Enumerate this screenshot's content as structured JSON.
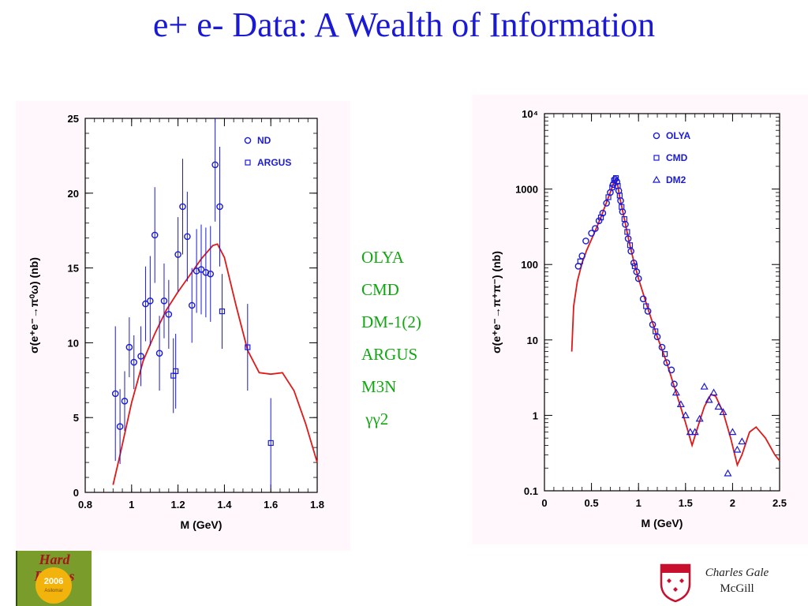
{
  "slide": {
    "title": "e+ e- Data: A Wealth of Information",
    "experiments": [
      "OLYA",
      "CMD",
      "DM-1(2)",
      "ARGUS",
      "M3N",
      " γγ2"
    ],
    "author": "Charles Gale",
    "institution": "McGill",
    "logo_text": "Hard Probes",
    "logo_year": "2006",
    "logo_subtext": "Asilomar",
    "colors": {
      "title": "#1a1ad6",
      "experiments": "#11a711",
      "data_points": "#1a1ad6",
      "theory_curve": "#e01818",
      "panel_background": "#fff7fc"
    }
  },
  "chart_data": [
    {
      "type": "scatter",
      "xlabel": "M (GeV)",
      "ylabel": "σ(e⁺e⁻→π⁰ω) (nb)",
      "xlim": [
        0.8,
        1.8
      ],
      "ylim": [
        0,
        25
      ],
      "xticks": [
        0.8,
        1,
        1.2,
        1.4,
        1.6,
        1.8
      ],
      "xtick_labels": [
        "0.8",
        "1",
        "1.2",
        "1.4",
        "1.6",
        "1.8"
      ],
      "yticks": [
        0,
        5,
        10,
        15,
        20,
        25
      ],
      "ytick_labels": [
        "0",
        "5",
        "10",
        "15",
        "20",
        "25"
      ],
      "legend": [
        "ND",
        "ARGUS"
      ],
      "legend_position": "top-right",
      "series": [
        {
          "name": "ND",
          "marker": "circle",
          "points": [
            {
              "x": 0.93,
              "y": 6.6,
              "err": 4.5
            },
            {
              "x": 0.95,
              "y": 4.4,
              "err": 2.5
            },
            {
              "x": 0.97,
              "y": 6.1,
              "err": 2.0
            },
            {
              "x": 0.99,
              "y": 9.7,
              "err": 2.0
            },
            {
              "x": 1.01,
              "y": 8.7,
              "err": 1.8
            },
            {
              "x": 1.04,
              "y": 9.1,
              "err": 2.0
            },
            {
              "x": 1.06,
              "y": 12.6,
              "err": 2.5
            },
            {
              "x": 1.08,
              "y": 12.8,
              "err": 3.0
            },
            {
              "x": 1.1,
              "y": 17.2,
              "err": 3.2
            },
            {
              "x": 1.12,
              "y": 9.3,
              "err": 2.5
            },
            {
              "x": 1.14,
              "y": 12.8,
              "err": 2.5
            },
            {
              "x": 1.16,
              "y": 11.9,
              "err": 2.3
            },
            {
              "x": 1.2,
              "y": 15.9,
              "err": 2.5
            },
            {
              "x": 1.22,
              "y": 19.1,
              "err": 3.2
            },
            {
              "x": 1.24,
              "y": 17.1,
              "err": 3.0
            },
            {
              "x": 1.26,
              "y": 12.5,
              "err": 2.5
            },
            {
              "x": 1.28,
              "y": 14.8,
              "err": 2.8
            },
            {
              "x": 1.3,
              "y": 14.9,
              "err": 3.0
            },
            {
              "x": 1.32,
              "y": 14.7,
              "err": 3.0
            },
            {
              "x": 1.34,
              "y": 14.6,
              "err": 3.2
            },
            {
              "x": 1.36,
              "y": 21.9,
              "err": 3.8
            },
            {
              "x": 1.38,
              "y": 19.1,
              "err": 4.0
            }
          ]
        },
        {
          "name": "ARGUS",
          "marker": "square",
          "points": [
            {
              "x": 1.18,
              "y": 7.8,
              "err": 2.5
            },
            {
              "x": 1.19,
              "y": 8.1,
              "err": 2.5
            },
            {
              "x": 1.39,
              "y": 12.1,
              "err": 2.5
            },
            {
              "x": 1.5,
              "y": 9.7,
              "err": 2.9
            },
            {
              "x": 1.6,
              "y": 3.3,
              "err": 3.0
            }
          ]
        }
      ],
      "curve": [
        [
          0.92,
          0.5
        ],
        [
          0.95,
          2.5
        ],
        [
          1.0,
          6.0
        ],
        [
          1.05,
          8.8
        ],
        [
          1.1,
          10.6
        ],
        [
          1.15,
          12.2
        ],
        [
          1.2,
          13.4
        ],
        [
          1.25,
          14.5
        ],
        [
          1.3,
          15.6
        ],
        [
          1.35,
          16.5
        ],
        [
          1.37,
          16.6
        ],
        [
          1.4,
          15.7
        ],
        [
          1.45,
          12.5
        ],
        [
          1.5,
          9.5
        ],
        [
          1.55,
          8.0
        ],
        [
          1.6,
          7.9
        ],
        [
          1.65,
          8.0
        ],
        [
          1.7,
          6.8
        ],
        [
          1.75,
          4.6
        ],
        [
          1.8,
          2.0
        ]
      ]
    },
    {
      "type": "scatter",
      "xlabel": "M (GeV)",
      "ylabel": "σ(e⁺e⁻→π⁺π⁻) (nb)",
      "yscale": "log",
      "xlim": [
        0,
        2.5
      ],
      "ylim": [
        0.1,
        10000
      ],
      "xticks": [
        0,
        0.5,
        1,
        1.5,
        2,
        2.5
      ],
      "xtick_labels": [
        "0",
        "0.5",
        "1",
        "1.5",
        "2",
        "2.5"
      ],
      "yticks": [
        0.1,
        1,
        10,
        100,
        1000,
        10000
      ],
      "ytick_labels": [
        "0.1",
        "1",
        "10",
        "100",
        "1000",
        "10⁴"
      ],
      "legend": [
        "OLYA",
        "CMD",
        "DM2"
      ],
      "legend_position": "top-right",
      "series": [
        {
          "name": "OLYA",
          "marker": "circle",
          "points": [
            {
              "x": 0.36,
              "y": 95
            },
            {
              "x": 0.4,
              "y": 130
            },
            {
              "x": 0.44,
              "y": 205
            },
            {
              "x": 0.5,
              "y": 260
            },
            {
              "x": 0.54,
              "y": 300
            },
            {
              "x": 0.58,
              "y": 380
            },
            {
              "x": 0.62,
              "y": 480
            },
            {
              "x": 0.66,
              "y": 650
            },
            {
              "x": 0.7,
              "y": 900
            },
            {
              "x": 0.73,
              "y": 1150
            },
            {
              "x": 0.75,
              "y": 1350
            },
            {
              "x": 0.77,
              "y": 1250
            },
            {
              "x": 0.79,
              "y": 950
            },
            {
              "x": 0.81,
              "y": 700
            },
            {
              "x": 0.83,
              "y": 500
            },
            {
              "x": 0.86,
              "y": 340
            },
            {
              "x": 0.89,
              "y": 220
            },
            {
              "x": 0.92,
              "y": 150
            },
            {
              "x": 0.95,
              "y": 105
            },
            {
              "x": 0.98,
              "y": 80
            },
            {
              "x": 1.0,
              "y": 65
            },
            {
              "x": 1.05,
              "y": 35
            },
            {
              "x": 1.1,
              "y": 24
            },
            {
              "x": 1.15,
              "y": 16
            },
            {
              "x": 1.2,
              "y": 11
            },
            {
              "x": 1.25,
              "y": 8
            },
            {
              "x": 1.3,
              "y": 5
            },
            {
              "x": 1.35,
              "y": 4
            },
            {
              "x": 1.38,
              "y": 2.6
            }
          ]
        },
        {
          "name": "CMD",
          "marker": "square",
          "points": [
            {
              "x": 0.38,
              "y": 110
            },
            {
              "x": 0.6,
              "y": 420
            },
            {
              "x": 0.68,
              "y": 780
            },
            {
              "x": 0.72,
              "y": 1050
            },
            {
              "x": 0.74,
              "y": 1300
            },
            {
              "x": 0.76,
              "y": 1400
            },
            {
              "x": 0.78,
              "y": 1100
            },
            {
              "x": 0.8,
              "y": 820
            },
            {
              "x": 0.82,
              "y": 580
            },
            {
              "x": 0.85,
              "y": 400
            },
            {
              "x": 0.88,
              "y": 270
            },
            {
              "x": 0.91,
              "y": 180
            },
            {
              "x": 0.96,
              "y": 95
            },
            {
              "x": 1.08,
              "y": 28
            },
            {
              "x": 1.18,
              "y": 13
            },
            {
              "x": 1.28,
              "y": 6.5
            }
          ]
        },
        {
          "name": "DM2",
          "marker": "triangle",
          "points": [
            {
              "x": 1.4,
              "y": 2.0
            },
            {
              "x": 1.45,
              "y": 1.4
            },
            {
              "x": 1.5,
              "y": 1.0
            },
            {
              "x": 1.55,
              "y": 0.6
            },
            {
              "x": 1.6,
              "y": 0.6
            },
            {
              "x": 1.65,
              "y": 0.9
            },
            {
              "x": 1.7,
              "y": 2.4
            },
            {
              "x": 1.75,
              "y": 1.6
            },
            {
              "x": 1.8,
              "y": 2.0
            },
            {
              "x": 1.85,
              "y": 1.3
            },
            {
              "x": 1.9,
              "y": 1.1
            },
            {
              "x": 1.95,
              "y": 0.17
            },
            {
              "x": 2.0,
              "y": 0.6
            },
            {
              "x": 2.05,
              "y": 0.35
            },
            {
              "x": 2.1,
              "y": 0.45
            }
          ]
        }
      ],
      "curve": [
        [
          0.29,
          7
        ],
        [
          0.31,
          28
        ],
        [
          0.35,
          60
        ],
        [
          0.4,
          105
        ],
        [
          0.45,
          155
        ],
        [
          0.5,
          215
        ],
        [
          0.55,
          300
        ],
        [
          0.6,
          420
        ],
        [
          0.65,
          620
        ],
        [
          0.7,
          900
        ],
        [
          0.73,
          1150
        ],
        [
          0.76,
          1300
        ],
        [
          0.78,
          1100
        ],
        [
          0.8,
          780
        ],
        [
          0.85,
          400
        ],
        [
          0.9,
          200
        ],
        [
          0.95,
          110
        ],
        [
          1.0,
          65
        ],
        [
          1.1,
          26
        ],
        [
          1.2,
          11
        ],
        [
          1.3,
          5
        ],
        [
          1.4,
          2.0
        ],
        [
          1.5,
          0.8
        ],
        [
          1.57,
          0.4
        ],
        [
          1.63,
          0.7
        ],
        [
          1.7,
          1.3
        ],
        [
          1.77,
          1.9
        ],
        [
          1.82,
          1.8
        ],
        [
          1.9,
          1.1
        ],
        [
          1.98,
          0.5
        ],
        [
          2.05,
          0.22
        ],
        [
          2.1,
          0.3
        ],
        [
          2.18,
          0.6
        ],
        [
          2.25,
          0.7
        ],
        [
          2.35,
          0.5
        ],
        [
          2.45,
          0.3
        ],
        [
          2.5,
          0.25
        ]
      ]
    }
  ]
}
